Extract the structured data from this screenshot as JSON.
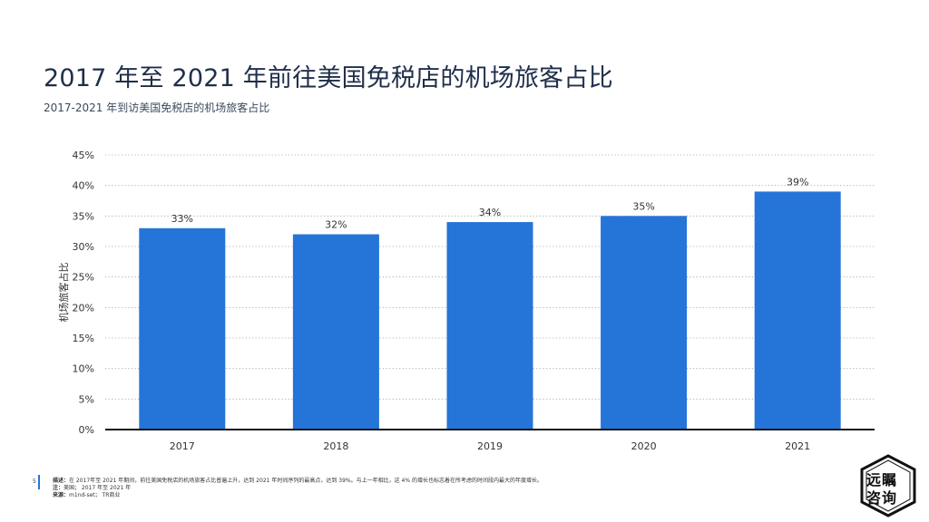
{
  "page": {
    "title": "2017 年至 2021 年前往美国免税店的机场旅客占比",
    "subtitle": "2017-2021 年到访美国免税店的机场旅客占比",
    "page_number": "5",
    "footer": {
      "desc_label": "描述：",
      "desc_text": "在 2017年至 2021 年期间，前往美国免税店的机场旅客占比普遍上升，达到 2021 年时间序列的最高点，达到 39%。与上一年相比，这 4% 的增长也标志着在所考虑的时间段内最大的年度增长。",
      "note_label": "注：",
      "note_text": "美国； 2017 年至 2021 年",
      "source_label": "来源：",
      "source_text": "m1nd-set； TR商业"
    },
    "logo": {
      "line1": "远瞩",
      "line2": "咨询"
    }
  },
  "chart_data": {
    "type": "bar",
    "categories": [
      "2017",
      "2018",
      "2019",
      "2020",
      "2021"
    ],
    "values": [
      33,
      32,
      34,
      35,
      39
    ],
    "data_labels": [
      "33%",
      "32%",
      "34%",
      "35%",
      "39%"
    ],
    "ylabel": "机场旅客占比",
    "xlabel": "",
    "ylim": [
      0,
      45
    ],
    "yticks": [
      0,
      5,
      10,
      15,
      20,
      25,
      30,
      35,
      40,
      45
    ],
    "ytick_labels": [
      "0%",
      "5%",
      "10%",
      "15%",
      "20%",
      "25%",
      "30%",
      "35%",
      "40%",
      "45%"
    ],
    "bar_color": "#2574d8",
    "grid": "dotted-horizontal",
    "legend": "none"
  }
}
